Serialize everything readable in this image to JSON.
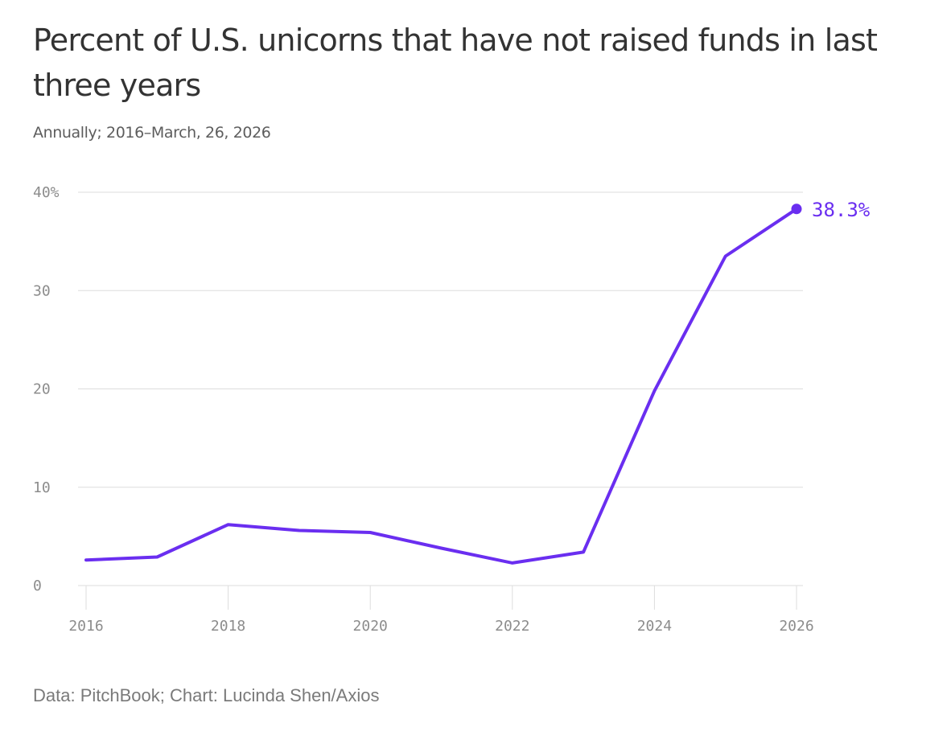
{
  "header": {
    "title": "Percent of U.S. unicorns that have not raised funds in last three years",
    "subtitle": "Annually; 2016–March, 26, 2026"
  },
  "footer": {
    "source": "Data: PitchBook; Chart: Lucinda Shen/Axios"
  },
  "colors": {
    "line": "#6a2ef0",
    "grid": "#dddddd",
    "tick_text": "#8c8c8c"
  },
  "chart_data": {
    "type": "line",
    "title": "Percent of U.S. unicorns that have not raised funds in last three years",
    "subtitle": "Annually; 2016–March, 26, 2026",
    "xlabel": "",
    "ylabel": "",
    "xlim": [
      2016,
      2026
    ],
    "ylim": [
      0,
      40
    ],
    "grid": true,
    "legend": "none",
    "y_ticks": [
      0,
      10,
      20,
      30,
      40
    ],
    "y_tick_labels": [
      "0",
      "10",
      "20",
      "30",
      "40%"
    ],
    "x_ticks": [
      2016,
      2018,
      2020,
      2022,
      2024,
      2026
    ],
    "x_tick_labels": [
      "2016",
      "2018",
      "2020",
      "2022",
      "2024",
      "2026"
    ],
    "series": [
      {
        "name": "Percent of U.S. unicorns",
        "x": [
          2016,
          2017,
          2018,
          2019,
          2020,
          2021,
          2022,
          2023,
          2024,
          2025,
          2026
        ],
        "values": [
          2.6,
          2.9,
          6.2,
          5.6,
          5.4,
          3.8,
          2.3,
          3.4,
          19.8,
          33.5,
          38.3
        ]
      }
    ],
    "end_label": "38.3%"
  }
}
